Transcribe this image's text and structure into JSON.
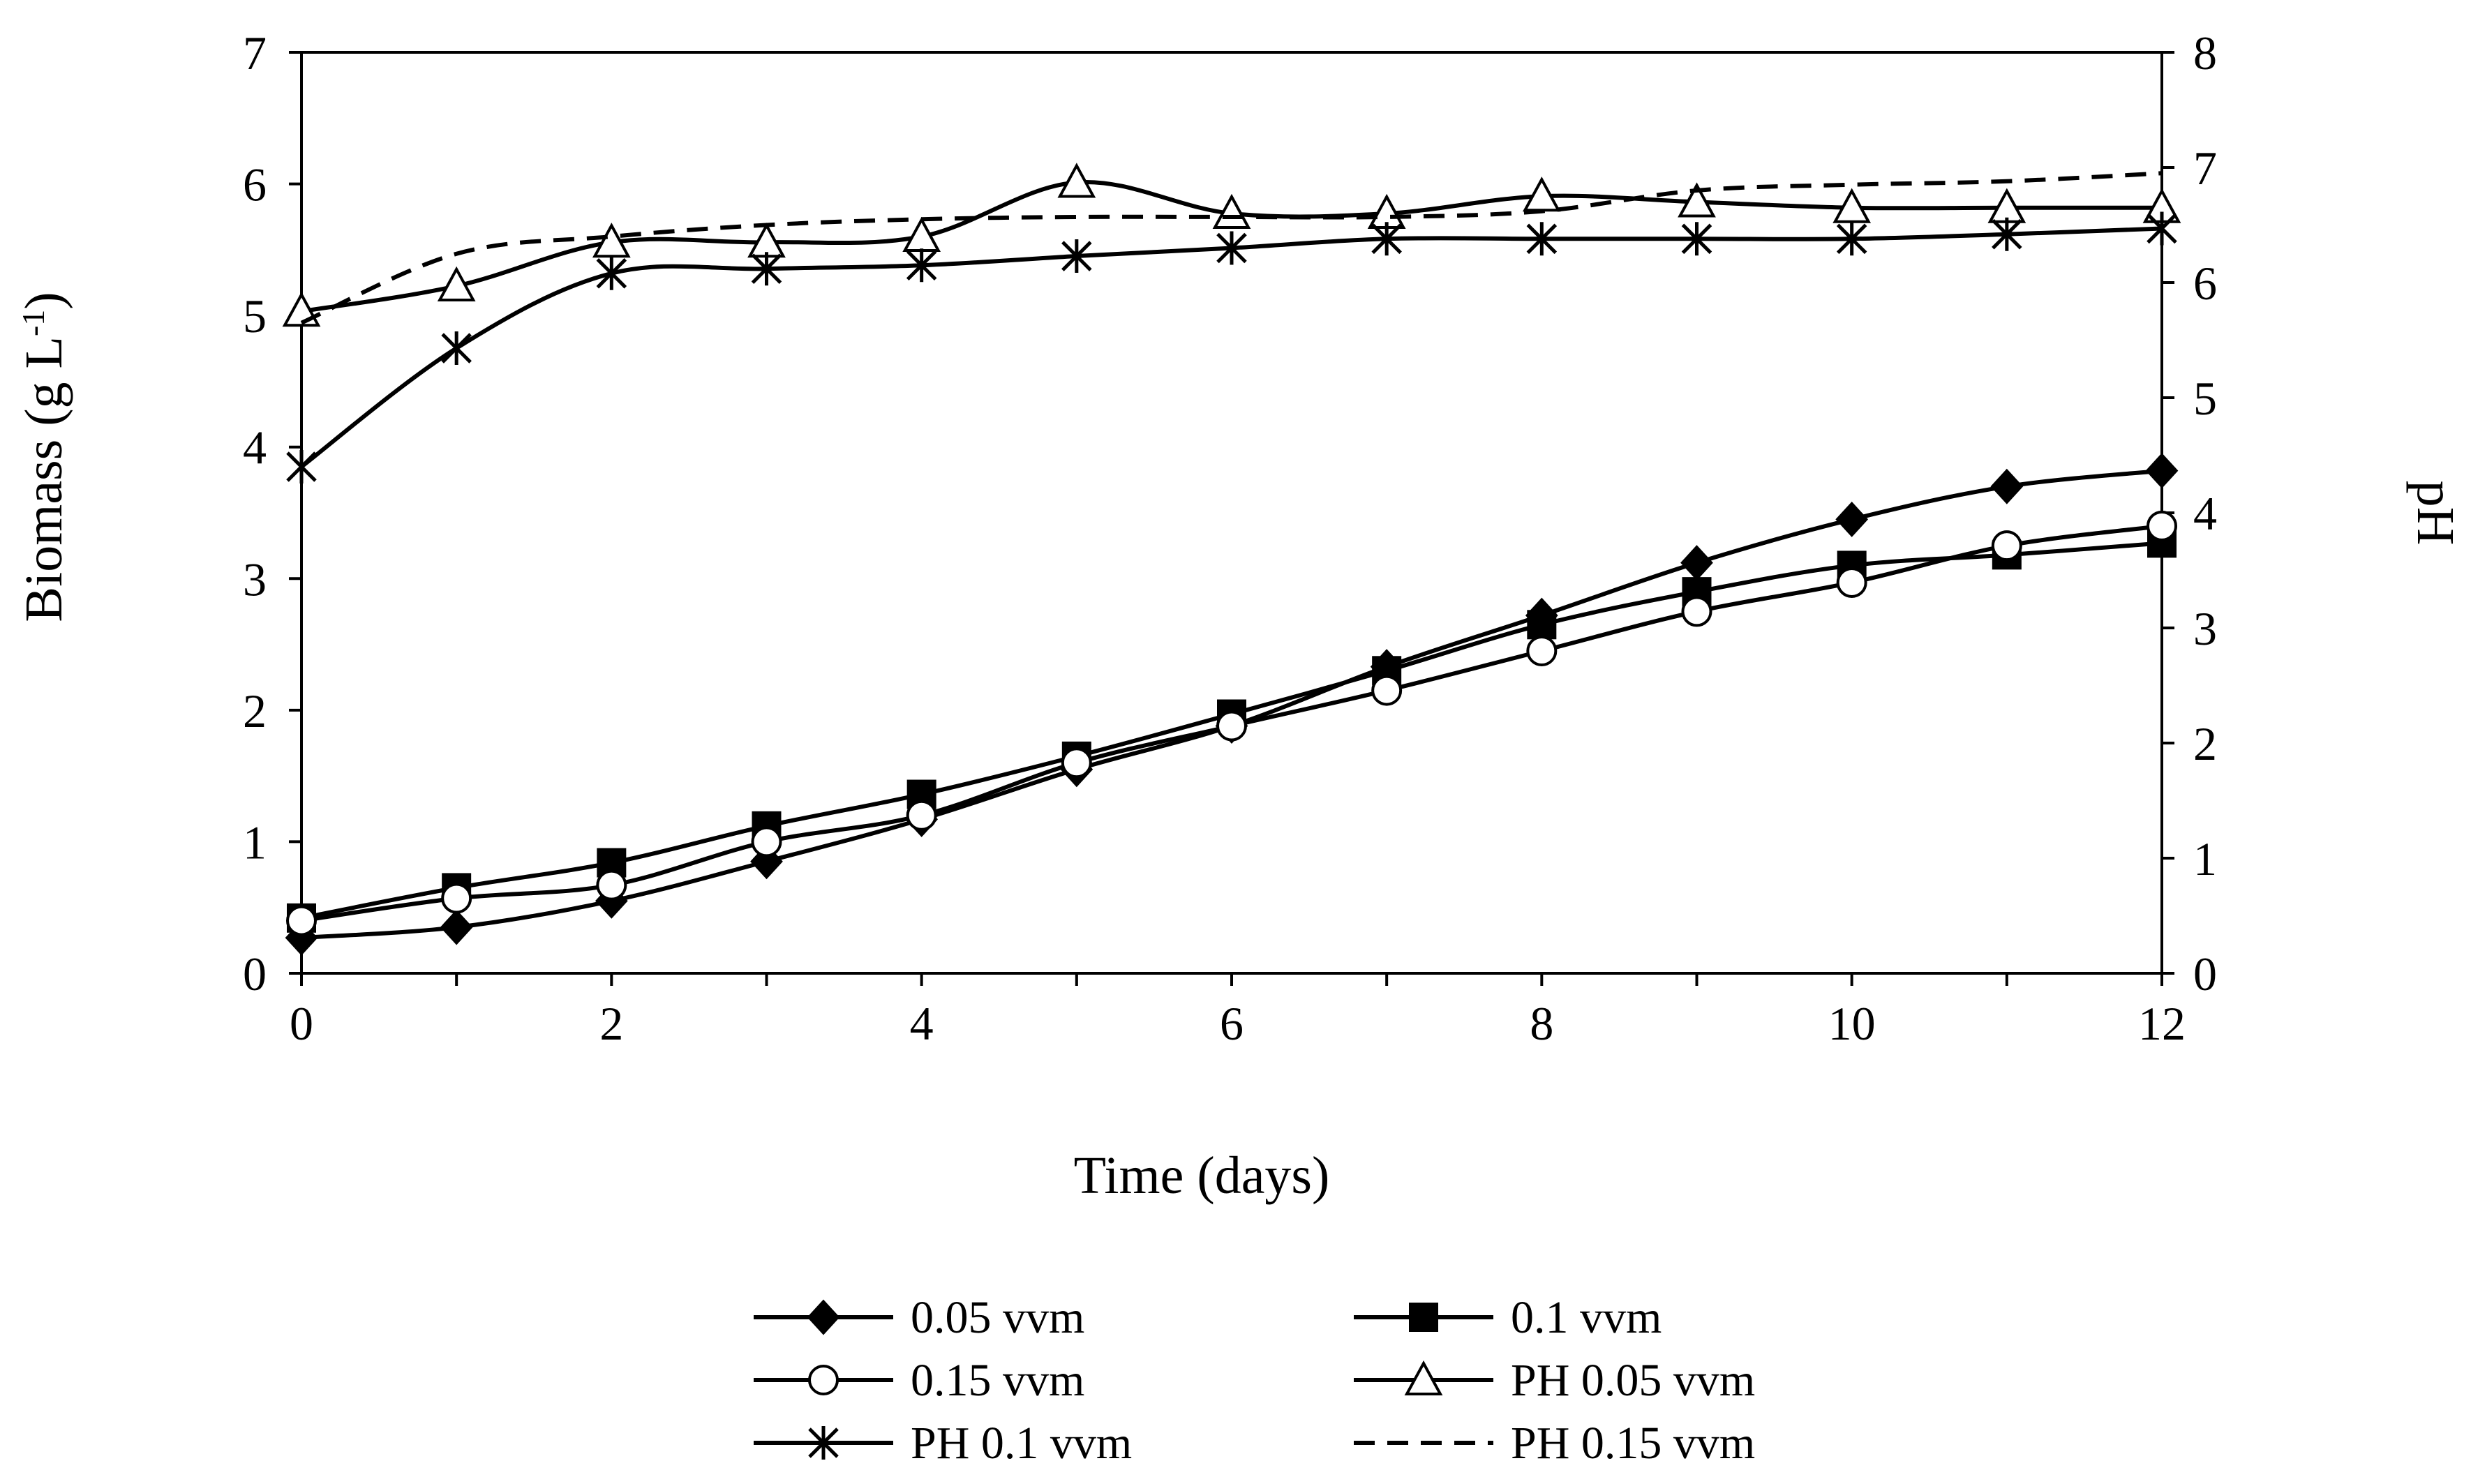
{
  "chart_data": {
    "type": "line",
    "title": "",
    "xlabel": "Time (days)",
    "ylabel": "Biomass (g L",
    "ylabel_superscript": "-1",
    "ylabel_suffix": ")",
    "y2label": "pH",
    "xlim": [
      0,
      12
    ],
    "ylim": [
      0,
      7
    ],
    "y2lim": [
      0,
      8
    ],
    "x_ticks": [
      0,
      2,
      4,
      6,
      8,
      10,
      12
    ],
    "y_ticks": [
      0,
      1,
      2,
      3,
      4,
      5,
      6,
      7
    ],
    "y2_ticks": [
      0,
      1,
      2,
      3,
      4,
      5,
      6,
      7,
      8
    ],
    "grid": false,
    "legend_position": "bottom",
    "x": [
      0,
      1,
      2,
      3,
      4,
      5,
      6,
      7,
      8,
      9,
      10,
      11,
      12
    ],
    "series": [
      {
        "name": "0.05 vvm",
        "axis": "left",
        "marker": "diamond",
        "dash": false,
        "values": [
          0.27,
          0.35,
          0.55,
          0.85,
          1.17,
          1.55,
          1.88,
          2.33,
          2.72,
          3.12,
          3.45,
          3.7,
          3.82
        ]
      },
      {
        "name": "0.1 vvm",
        "axis": "left",
        "marker": "square",
        "dash": false,
        "values": [
          0.42,
          0.65,
          0.84,
          1.12,
          1.36,
          1.65,
          1.97,
          2.3,
          2.65,
          2.9,
          3.1,
          3.18,
          3.27
        ]
      },
      {
        "name": "0.15 vvm",
        "axis": "left",
        "marker": "circle",
        "dash": false,
        "values": [
          0.4,
          0.57,
          0.67,
          1.0,
          1.2,
          1.6,
          1.88,
          2.15,
          2.45,
          2.75,
          2.97,
          3.25,
          3.4
        ]
      },
      {
        "name": "PH 0.05 vvm",
        "axis": "right",
        "marker": "triangle",
        "dash": false,
        "values": [
          5.75,
          5.97,
          6.35,
          6.35,
          6.4,
          6.87,
          6.6,
          6.6,
          6.75,
          6.7,
          6.65,
          6.65,
          6.65
        ]
      },
      {
        "name": "PH 0.1 vvm",
        "axis": "right",
        "marker": "asterisk",
        "dash": false,
        "values": [
          4.4,
          5.43,
          6.08,
          6.12,
          6.15,
          6.23,
          6.3,
          6.38,
          6.38,
          6.38,
          6.38,
          6.42,
          6.47
        ]
      },
      {
        "name": "PH 0.15 vvm",
        "axis": "right",
        "marker": "none",
        "dash": true,
        "values": [
          5.65,
          6.25,
          6.4,
          6.5,
          6.55,
          6.57,
          6.57,
          6.57,
          6.62,
          6.8,
          6.85,
          6.88,
          6.95
        ]
      }
    ]
  }
}
